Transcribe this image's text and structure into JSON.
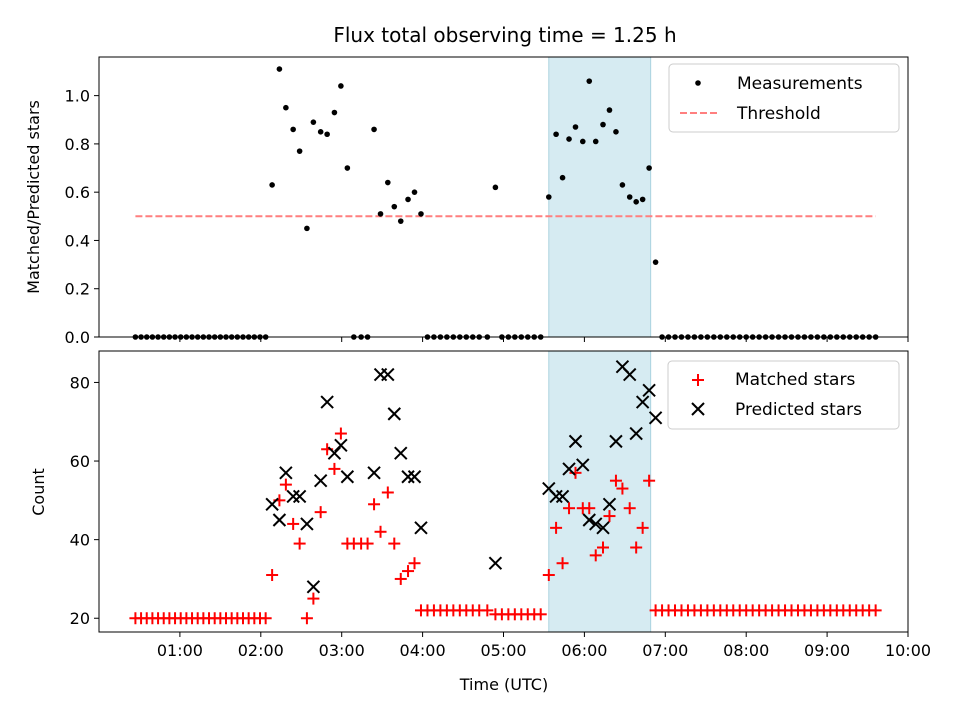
{
  "title": "Flux total observing time = 1.25 h",
  "chart_data": [
    {
      "type": "scatter",
      "panel": "top",
      "ylabel": "Matched/Predicted stars",
      "xlabel": "",
      "ylim": [
        0,
        1.16
      ],
      "xlim": [
        0.0,
        10.0
      ],
      "yticks": [
        0.0,
        0.2,
        0.4,
        0.6,
        0.8,
        1.0
      ],
      "ytick_labels": [
        "0.0",
        "0.2",
        "0.4",
        "0.6",
        "0.8",
        "1.0"
      ],
      "shaded_region": [
        5.56,
        6.82
      ],
      "legend": {
        "position": "top-right",
        "entries": [
          "Measurements",
          "Threshold"
        ]
      },
      "threshold": {
        "name": "Threshold",
        "value": 0.5,
        "x_range": [
          0.45,
          9.6
        ],
        "color": "#ff7f7f"
      },
      "series": [
        {
          "name": "Measurements",
          "color": "#000000",
          "x": [
            0.45,
            0.52,
            0.59,
            0.66,
            0.73,
            0.8,
            0.87,
            0.94,
            1.01,
            1.08,
            1.15,
            1.22,
            1.29,
            1.36,
            1.43,
            1.5,
            1.57,
            1.64,
            1.71,
            1.78,
            1.85,
            1.92,
            1.99,
            2.06,
            2.14,
            2.23,
            2.31,
            2.4,
            2.48,
            2.57,
            2.65,
            2.74,
            2.82,
            2.91,
            2.99,
            3.07,
            3.15,
            3.24,
            3.32,
            3.4,
            3.48,
            3.57,
            3.65,
            3.73,
            3.82,
            3.9,
            3.98,
            4.06,
            4.14,
            4.22,
            4.3,
            4.38,
            4.46,
            4.54,
            4.62,
            4.7,
            4.8,
            4.9,
            4.98,
            5.06,
            5.14,
            5.22,
            5.3,
            5.38,
            5.46,
            5.56,
            5.65,
            5.73,
            5.81,
            5.89,
            5.98,
            6.06,
            6.14,
            6.23,
            6.31,
            6.39,
            6.47,
            6.56,
            6.64,
            6.72,
            6.8,
            6.88,
            6.96,
            7.04,
            7.12,
            7.2,
            7.28,
            7.36,
            7.44,
            7.52,
            7.6,
            7.68,
            7.76,
            7.84,
            7.92,
            8.0,
            8.08,
            8.16,
            8.24,
            8.32,
            8.4,
            8.48,
            8.56,
            8.64,
            8.72,
            8.8,
            8.88,
            8.96,
            9.04,
            9.12,
            9.2,
            9.28,
            9.36,
            9.44,
            9.52,
            9.6
          ],
          "y": [
            0,
            0,
            0,
            0,
            0,
            0,
            0,
            0,
            0,
            0,
            0,
            0,
            0,
            0,
            0,
            0,
            0,
            0,
            0,
            0,
            0,
            0,
            0,
            0,
            0.63,
            1.11,
            0.95,
            0.86,
            0.77,
            0.45,
            0.89,
            0.85,
            0.84,
            0.93,
            1.04,
            0.7,
            0,
            0,
            0,
            0.86,
            0.51,
            0.64,
            0.54,
            0.48,
            0.57,
            0.6,
            0.51,
            0,
            0,
            0,
            0,
            0,
            0,
            0,
            0,
            0,
            0,
            0.62,
            0,
            0,
            0,
            0,
            0,
            0,
            0,
            0.58,
            0.84,
            0.66,
            0.82,
            0.87,
            0.81,
            1.06,
            0.81,
            0.88,
            0.94,
            0.85,
            0.63,
            0.58,
            0.56,
            0.57,
            0.7,
            0.31,
            0,
            0,
            0,
            0,
            0,
            0,
            0,
            0,
            0,
            0,
            0,
            0,
            0,
            0,
            0,
            0,
            0,
            0,
            0,
            0,
            0,
            0,
            0,
            0,
            0,
            0,
            0,
            0,
            0,
            0,
            0,
            0,
            0,
            0
          ]
        }
      ]
    },
    {
      "type": "scatter",
      "panel": "bottom",
      "ylabel": "Count",
      "xlabel": "Time (UTC)",
      "ylim": [
        16.5,
        88
      ],
      "xlim": [
        0.0,
        10.0
      ],
      "yticks": [
        20,
        40,
        60,
        80
      ],
      "ytick_labels": [
        "20",
        "40",
        "60",
        "80"
      ],
      "xticks": [
        1,
        2,
        3,
        4,
        5,
        6,
        7,
        8,
        9,
        10
      ],
      "xtick_labels": [
        "01:00",
        "02:00",
        "03:00",
        "04:00",
        "05:00",
        "06:00",
        "07:00",
        "08:00",
        "09:00",
        "10:00"
      ],
      "shaded_region": [
        5.56,
        6.82
      ],
      "legend": {
        "position": "top-right",
        "entries": [
          "Matched stars",
          "Predicted stars"
        ]
      },
      "series": [
        {
          "name": "Matched stars",
          "marker": "plus",
          "color": "#ff0000",
          "x": [
            0.45,
            0.52,
            0.59,
            0.66,
            0.73,
            0.8,
            0.87,
            0.94,
            1.01,
            1.08,
            1.15,
            1.22,
            1.29,
            1.36,
            1.43,
            1.5,
            1.57,
            1.64,
            1.71,
            1.78,
            1.85,
            1.92,
            1.99,
            2.06,
            2.14,
            2.23,
            2.31,
            2.4,
            2.48,
            2.57,
            2.65,
            2.74,
            2.82,
            2.91,
            2.99,
            3.07,
            3.15,
            3.24,
            3.32,
            3.4,
            3.48,
            3.57,
            3.65,
            3.73,
            3.82,
            3.9,
            3.98,
            4.06,
            4.14,
            4.22,
            4.3,
            4.38,
            4.46,
            4.54,
            4.62,
            4.7,
            4.8,
            4.9,
            4.98,
            5.06,
            5.14,
            5.22,
            5.3,
            5.38,
            5.46,
            5.56,
            5.65,
            5.73,
            5.81,
            5.89,
            5.98,
            6.06,
            6.14,
            6.23,
            6.31,
            6.39,
            6.47,
            6.56,
            6.64,
            6.72,
            6.8,
            6.88,
            6.96,
            7.04,
            7.12,
            7.2,
            7.28,
            7.36,
            7.44,
            7.52,
            7.6,
            7.68,
            7.76,
            7.84,
            7.92,
            8.0,
            8.08,
            8.16,
            8.24,
            8.32,
            8.4,
            8.48,
            8.56,
            8.64,
            8.72,
            8.8,
            8.88,
            8.96,
            9.04,
            9.12,
            9.2,
            9.28,
            9.36,
            9.44,
            9.52,
            9.6
          ],
          "y": [
            20,
            20,
            20,
            20,
            20,
            20,
            20,
            20,
            20,
            20,
            20,
            20,
            20,
            20,
            20,
            20,
            20,
            20,
            20,
            20,
            20,
            20,
            20,
            20,
            31,
            50,
            54,
            44,
            39,
            20,
            25,
            47,
            63,
            58,
            67,
            39,
            39,
            39,
            39,
            49,
            42,
            52,
            39,
            30,
            32,
            34,
            22,
            22,
            22,
            22,
            22,
            22,
            22,
            22,
            22,
            22,
            22,
            21,
            21,
            21,
            21,
            21,
            21,
            21,
            21,
            31,
            43,
            34,
            48,
            57,
            48,
            48,
            36,
            38,
            46,
            55,
            53,
            48,
            38,
            43,
            55,
            22,
            22,
            22,
            22,
            22,
            22,
            22,
            22,
            22,
            22,
            22,
            22,
            22,
            22,
            22,
            22,
            22,
            22,
            22,
            22,
            22,
            22,
            22,
            22,
            22,
            22,
            22,
            22,
            22,
            22,
            22,
            22,
            22,
            22,
            22
          ]
        },
        {
          "name": "Predicted stars",
          "marker": "x",
          "color": "#000000",
          "x": [
            2.14,
            2.23,
            2.31,
            2.4,
            2.48,
            2.57,
            2.65,
            2.74,
            2.82,
            2.91,
            2.99,
            3.07,
            3.48,
            3.4,
            3.57,
            3.65,
            3.73,
            3.82,
            3.9,
            3.98,
            4.9,
            5.56,
            5.65,
            5.73,
            5.81,
            5.89,
            5.98,
            6.06,
            6.14,
            6.23,
            6.31,
            6.39,
            6.47,
            6.56,
            6.64,
            6.72,
            6.8,
            6.88
          ],
          "y": [
            49,
            45,
            57,
            51,
            51,
            44,
            28,
            55,
            75,
            62,
            64,
            56,
            82,
            57,
            82,
            72,
            62,
            56,
            56,
            43,
            34,
            53,
            51,
            51,
            58,
            65,
            59,
            45,
            44,
            43,
            49,
            65,
            84,
            82,
            67,
            75,
            78,
            71
          ]
        }
      ]
    }
  ]
}
